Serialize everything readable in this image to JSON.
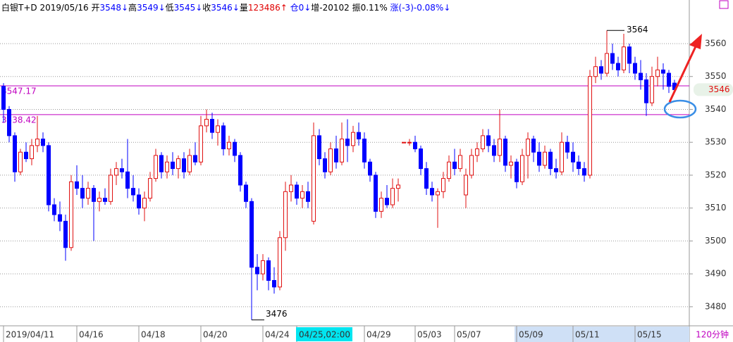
{
  "chart_data": {
    "type": "candlestick",
    "header": [
      {
        "text": "白银T+D",
        "color": "#000000"
      },
      {
        "text": " 2019/05/16 ",
        "color": "#000000"
      },
      {
        "text": "开",
        "color": "#000000"
      },
      {
        "text": "3548↓",
        "color": "#0000ff"
      },
      {
        "text": "高",
        "color": "#000000"
      },
      {
        "text": "3549↓",
        "color": "#0000ff"
      },
      {
        "text": "低",
        "color": "#000000"
      },
      {
        "text": "3545↓",
        "color": "#0000ff"
      },
      {
        "text": "收",
        "color": "#000000"
      },
      {
        "text": "3546↓",
        "color": "#0000ff"
      },
      {
        "text": "量",
        "color": "#000000"
      },
      {
        "text": "123486↑",
        "color": "#e00000"
      },
      {
        "text": " 仓0↓",
        "color": "#0000ff"
      },
      {
        "text": "增-20102 振0.11% ",
        "color": "#000000"
      },
      {
        "text": "涨(-3)-0.08%↓",
        "color": "#0000ff"
      }
    ],
    "period": "120分钟",
    "up_color": "#e01010",
    "down_color": "#0000ff",
    "ylim": [
      3474.2,
      3573.26
    ],
    "yticks": [
      3480,
      3490,
      3500,
      3510,
      3520,
      3530,
      3540,
      3550,
      3560
    ],
    "grid": true,
    "cursor": "04/25,02:00",
    "ref_lines": [
      {
        "value": 3547.17,
        "label": "3547.17",
        "color": "#c000c0"
      },
      {
        "value": 3538.42,
        "label": "3538.42",
        "color": "#c000c0"
      }
    ],
    "high_mark": {
      "value": 3564,
      "label": "3564"
    },
    "low_mark": {
      "value": 3476,
      "label": "3476"
    },
    "last_price": 3546,
    "categories": [
      "2019/04/11",
      null,
      null,
      null,
      null,
      null,
      null,
      null,
      null,
      null,
      null,
      null,
      null,
      "04/16",
      null,
      null,
      null,
      null,
      null,
      null,
      null,
      null,
      null,
      null,
      "04/18",
      null,
      null,
      null,
      null,
      null,
      null,
      null,
      null,
      null,
      null,
      "04/20",
      null,
      null,
      null,
      null,
      null,
      null,
      null,
      null,
      null,
      null,
      "04/24",
      null,
      null,
      null,
      null,
      null,
      "04/25,02:00",
      null,
      null,
      null,
      null,
      null,
      null,
      null,
      null,
      null,
      null,
      null,
      "04/29",
      null,
      null,
      null,
      null,
      null,
      null,
      null,
      null,
      "05/03",
      null,
      null,
      null,
      null,
      null,
      null,
      "05/07",
      null,
      null,
      null,
      null,
      null,
      null,
      null,
      null,
      null,
      null,
      "05/09",
      null,
      null,
      null,
      null,
      null,
      null,
      null,
      null,
      null,
      "05/11",
      null,
      null,
      null,
      null,
      null,
      null,
      null,
      null,
      null,
      null,
      "05/15",
      null,
      null,
      null,
      null,
      null,
      null,
      null
    ],
    "ohlc": [
      [
        3547,
        3548,
        3536,
        3540
      ],
      [
        3540,
        3541,
        3530,
        3532
      ],
      [
        3532,
        3533,
        3518,
        3521
      ],
      [
        3521,
        3528,
        3520,
        3527
      ],
      [
        3527,
        3530,
        3524,
        3525
      ],
      [
        3525,
        3531,
        3523,
        3529
      ],
      [
        3529,
        3538,
        3527,
        3531
      ],
      [
        3531,
        3533,
        3527,
        3529
      ],
      [
        3529,
        3530,
        3509,
        3511
      ],
      [
        3511,
        3513,
        3506,
        3508
      ],
      [
        3508,
        3512,
        3503,
        3506
      ],
      [
        3506,
        3508,
        3494,
        3498
      ],
      [
        3498,
        3520,
        3497,
        3518
      ],
      [
        3518,
        3523,
        3514,
        3516
      ],
      [
        3516,
        3520,
        3510,
        3513
      ],
      [
        3513,
        3518,
        3511,
        3516
      ],
      [
        3516,
        3517,
        3500,
        3512
      ],
      [
        3512,
        3515,
        3509,
        3513
      ],
      [
        3513,
        3516,
        3511,
        3512
      ],
      [
        3512,
        3522,
        3511,
        3520
      ],
      [
        3520,
        3524,
        3517,
        3522
      ],
      [
        3522,
        3525,
        3519,
        3521
      ],
      [
        3521,
        3531,
        3513,
        3516
      ],
      [
        3516,
        3520,
        3512,
        3514
      ],
      [
        3514,
        3516,
        3508,
        3510
      ],
      [
        3510,
        3515,
        3506,
        3513
      ],
      [
        3513,
        3521,
        3512,
        3519
      ],
      [
        3519,
        3528,
        3518,
        3526
      ],
      [
        3526,
        3527,
        3519,
        3521
      ],
      [
        3521,
        3526,
        3519,
        3524
      ],
      [
        3524,
        3527,
        3520,
        3522
      ],
      [
        3522,
        3526,
        3519,
        3525
      ],
      [
        3525,
        3527,
        3519,
        3521
      ],
      [
        3521,
        3528,
        3520,
        3526
      ],
      [
        3526,
        3530,
        3523,
        3524
      ],
      [
        3524,
        3538,
        3523,
        3535
      ],
      [
        3535,
        3540,
        3533,
        3537
      ],
      [
        3537,
        3539,
        3531,
        3533
      ],
      [
        3533,
        3537,
        3529,
        3535
      ],
      [
        3535,
        3536,
        3526,
        3528
      ],
      [
        3528,
        3532,
        3526,
        3530
      ],
      [
        3530,
        3531,
        3524,
        3526
      ],
      [
        3526,
        3527,
        3515,
        3517
      ],
      [
        3517,
        3518,
        3510,
        3512
      ],
      [
        3512,
        3513,
        3476,
        3492
      ],
      [
        3492,
        3496,
        3485,
        3490
      ],
      [
        3490,
        3496,
        3488,
        3494
      ],
      [
        3494,
        3495,
        3485,
        3488
      ],
      [
        3488,
        3492,
        3484,
        3486
      ],
      [
        3486,
        3503,
        3485,
        3501
      ],
      [
        3501,
        3518,
        3497,
        3515
      ],
      [
        3515,
        3520,
        3512,
        3517
      ],
      [
        3517,
        3518,
        3511,
        3513
      ],
      [
        3513,
        3517,
        3510,
        3515
      ],
      [
        3515,
        3518,
        3510,
        3512
      ],
      [
        3506,
        3536,
        3505,
        3532
      ],
      [
        3532,
        3534,
        3523,
        3525
      ],
      [
        3525,
        3527,
        3519,
        3521
      ],
      [
        3521,
        3530,
        3520,
        3528
      ],
      [
        3528,
        3532,
        3522,
        3524
      ],
      [
        3524,
        3536,
        3523,
        3531
      ],
      [
        3531,
        3537,
        3524,
        3529
      ],
      [
        3529,
        3535,
        3527,
        3533
      ],
      [
        3533,
        3536,
        3529,
        3531
      ],
      [
        3531,
        3533,
        3522,
        3524
      ],
      [
        3524,
        3525,
        3518,
        3520
      ],
      [
        3520,
        3521,
        3507,
        3509
      ],
      [
        3509,
        3515,
        3507,
        3513
      ],
      [
        3513,
        3517,
        3510,
        3511
      ],
      [
        3511,
        3519,
        3510,
        3516
      ],
      [
        3516,
        3519,
        3512,
        3517
      ],
      [
        3530,
        3530,
        3530,
        3530
      ],
      [
        3530,
        3531,
        3529,
        3530
      ],
      [
        3530,
        3532,
        3527,
        3528
      ],
      [
        3528,
        3529,
        3520,
        3522
      ],
      [
        3522,
        3524,
        3514,
        3516
      ],
      [
        3516,
        3518,
        3512,
        3514
      ],
      [
        3514,
        3516,
        3504,
        3515
      ],
      [
        3515,
        3521,
        3513,
        3519
      ],
      [
        3519,
        3526,
        3518,
        3524
      ],
      [
        3524,
        3528,
        3520,
        3522
      ],
      [
        3522,
        3528,
        3521,
        3526
      ],
      [
        3514,
        3522,
        3510,
        3520
      ],
      [
        3520,
        3528,
        3519,
        3526
      ],
      [
        3526,
        3530,
        3524,
        3528
      ],
      [
        3528,
        3534,
        3527,
        3532
      ],
      [
        3532,
        3534,
        3527,
        3529
      ],
      [
        3529,
        3531,
        3524,
        3526
      ],
      [
        3526,
        3540,
        3524,
        3531
      ],
      [
        3531,
        3532,
        3521,
        3523
      ],
      [
        3523,
        3526,
        3519,
        3524
      ],
      [
        3524,
        3525,
        3516,
        3518
      ],
      [
        3518,
        3528,
        3517,
        3526
      ],
      [
        3526,
        3533,
        3519,
        3531
      ],
      [
        3531,
        3532,
        3524,
        3527
      ],
      [
        3527,
        3530,
        3521,
        3523
      ],
      [
        3523,
        3529,
        3522,
        3527
      ],
      [
        3527,
        3528,
        3520,
        3522
      ],
      [
        3522,
        3525,
        3519,
        3521
      ],
      [
        3521,
        3533,
        3520,
        3530
      ],
      [
        3530,
        3532,
        3525,
        3527
      ],
      [
        3527,
        3530,
        3521,
        3524
      ],
      [
        3524,
        3526,
        3520,
        3522
      ],
      [
        3522,
        3524,
        3518,
        3520
      ],
      [
        3520,
        3552,
        3519,
        3550
      ],
      [
        3550,
        3556,
        3548,
        3553
      ],
      [
        3553,
        3555,
        3549,
        3551
      ],
      [
        3551,
        3564,
        3550,
        3557
      ],
      [
        3557,
        3560,
        3552,
        3554
      ],
      [
        3554,
        3556,
        3550,
        3552
      ],
      [
        3552,
        3563,
        3551,
        3559
      ],
      [
        3559,
        3560,
        3551,
        3554
      ],
      [
        3554,
        3556,
        3549,
        3551
      ],
      [
        3551,
        3555,
        3546,
        3549
      ],
      [
        3549,
        3551,
        3538,
        3542
      ],
      [
        3542,
        3553,
        3541,
        3550
      ],
      [
        3550,
        3556,
        3547,
        3552
      ],
      [
        3552,
        3554,
        3546,
        3551
      ],
      [
        3551,
        3552,
        3545,
        3547
      ],
      [
        3548,
        3549,
        3545,
        3546
      ]
    ]
  }
}
